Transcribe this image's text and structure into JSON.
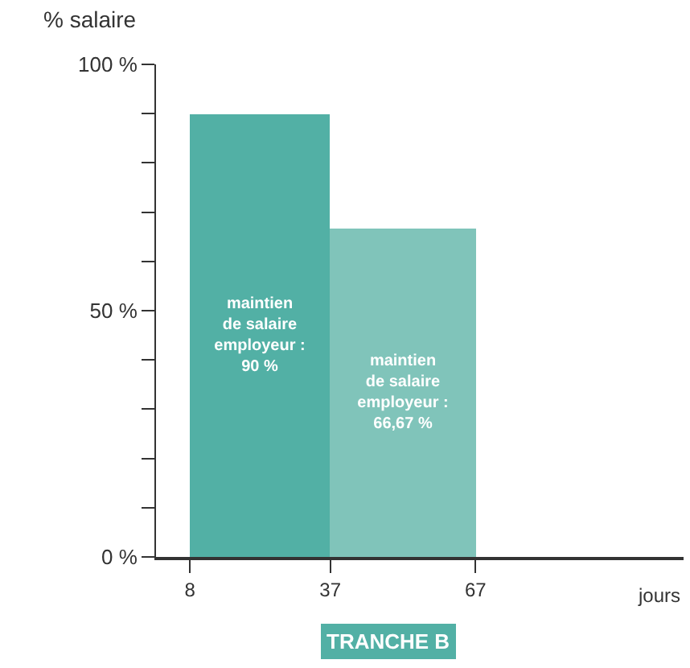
{
  "chart_data": {
    "type": "histogram",
    "ylabel": "% salaire",
    "xlabel": "jours",
    "bins": [
      8,
      37,
      67
    ],
    "values": [
      90,
      66.67
    ],
    "colors": [
      "#52b0a5",
      "#80c4ba"
    ],
    "value_labels": [
      "maintien\nde salaire\nemployeur :\n90 %",
      "maintien\nde salaire\nemployeur :\n66,67 %"
    ],
    "xlim": [
      1,
      110
    ],
    "xticks": [
      8,
      37,
      67
    ],
    "ylim": [
      0,
      100
    ],
    "yticks": [
      {
        "value": 0,
        "label": "0 %"
      },
      {
        "value": 10,
        "label": null
      },
      {
        "value": 20,
        "label": null
      },
      {
        "value": 30,
        "label": null
      },
      {
        "value": 40,
        "label": null
      },
      {
        "value": 50,
        "label": "50 %"
      },
      {
        "value": 60,
        "label": null
      },
      {
        "value": 70,
        "label": null
      },
      {
        "value": 80,
        "label": null
      },
      {
        "value": 90,
        "label": null
      },
      {
        "value": 100,
        "label": "100 %"
      }
    ],
    "annotations": [
      "TRANCHE B"
    ]
  }
}
